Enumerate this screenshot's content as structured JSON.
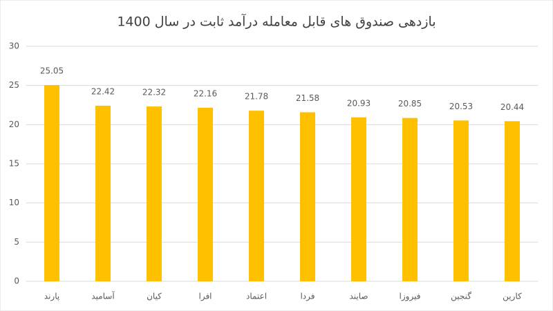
{
  "chart_data": {
    "type": "bar",
    "title": "بازدهی صندوق های قابل معامله درآمد ثابت در سال 1400",
    "categories": [
      "پارند",
      "آسامید",
      "کیان",
      "افرا",
      "اعتماد",
      "فردا",
      "صایند",
      "فیروزا",
      "گنجین",
      "کارین"
    ],
    "values": [
      25.05,
      22.42,
      22.32,
      22.16,
      21.78,
      21.58,
      20.93,
      20.85,
      20.53,
      20.44
    ],
    "color": "#ffc000",
    "ylim": [
      0,
      30
    ],
    "yticks": [
      0,
      5,
      10,
      15,
      20,
      25,
      30
    ],
    "grid": true
  }
}
